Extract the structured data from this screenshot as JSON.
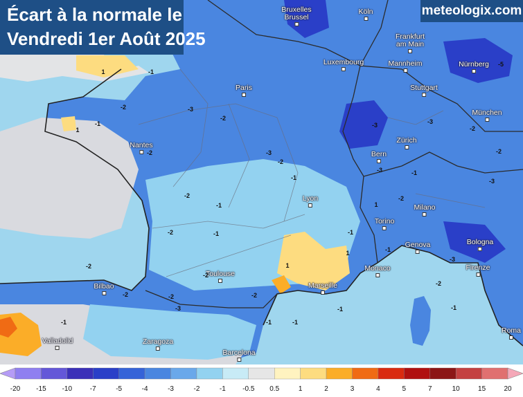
{
  "title": {
    "line1": "Écart à la normale le",
    "line2": "Vendredi 1er Août 2025"
  },
  "brand": "meteologix.com",
  "colors": {
    "title_bg": "#1e4f86",
    "sea": "#9fd6ee",
    "land_base": "#4a86e0",
    "border": "#2b2b2b"
  },
  "cities": [
    {
      "name": "Bruxelles\nBrussel"
    },
    {
      "name": "Köln"
    },
    {
      "name": "Frankfurt\nam Main"
    },
    {
      "name": "Luxembourg"
    },
    {
      "name": "Mannheim"
    },
    {
      "name": "Nürnberg"
    },
    {
      "name": "Paris"
    },
    {
      "name": "Stuttgart"
    },
    {
      "name": "München"
    },
    {
      "name": "Nantes"
    },
    {
      "name": "Zürich"
    },
    {
      "name": "Bern"
    },
    {
      "name": "Lyon"
    },
    {
      "name": "Milano"
    },
    {
      "name": "Torino"
    },
    {
      "name": "Genova"
    },
    {
      "name": "Bologna"
    },
    {
      "name": "Monaco"
    },
    {
      "name": "Firenze"
    },
    {
      "name": "Marseille"
    },
    {
      "name": "Toulouse"
    },
    {
      "name": "Bilbao"
    },
    {
      "name": "Valladolid"
    },
    {
      "name": "Zaragoza"
    },
    {
      "name": "Barcelona"
    },
    {
      "name": "Roma"
    }
  ],
  "isolines": [
    "1",
    "-1",
    "-2",
    "-3",
    "-2",
    "-1",
    "-2",
    "-2",
    "-3",
    "-3",
    "-2",
    "-2",
    "-2",
    "-2",
    "-1",
    "-1",
    "-2",
    "-3",
    "-2",
    "-5",
    "-3",
    "-3",
    "-2",
    "-1",
    "1",
    "-1",
    "-2",
    "-3",
    "-1",
    "-1",
    "-1",
    "1",
    "1",
    "-2",
    "-1",
    "-1",
    "-1",
    "-2",
    "-3",
    "-2",
    "-1",
    "1"
  ],
  "legend": {
    "ticks": [
      "-20",
      "-15",
      "-10",
      "-7",
      "-5",
      "-4",
      "-3",
      "-2",
      "-1",
      "-0.5",
      "0.5",
      "1",
      "2",
      "3",
      "4",
      "5",
      "7",
      "10",
      "15",
      "20"
    ],
    "colors": [
      "#b59cf6",
      "#8f7ff0",
      "#6457d8",
      "#3b30b8",
      "#2a3fc8",
      "#3563d8",
      "#4a86e0",
      "#6aa8ea",
      "#93d2f0",
      "#c8ebf6",
      "#e6e6e6",
      "#fff3c0",
      "#fddc80",
      "#fbad28",
      "#f06b14",
      "#d92a10",
      "#b01010",
      "#8c1616",
      "#c44040",
      "#e07070",
      "#f5a8b8"
    ]
  }
}
